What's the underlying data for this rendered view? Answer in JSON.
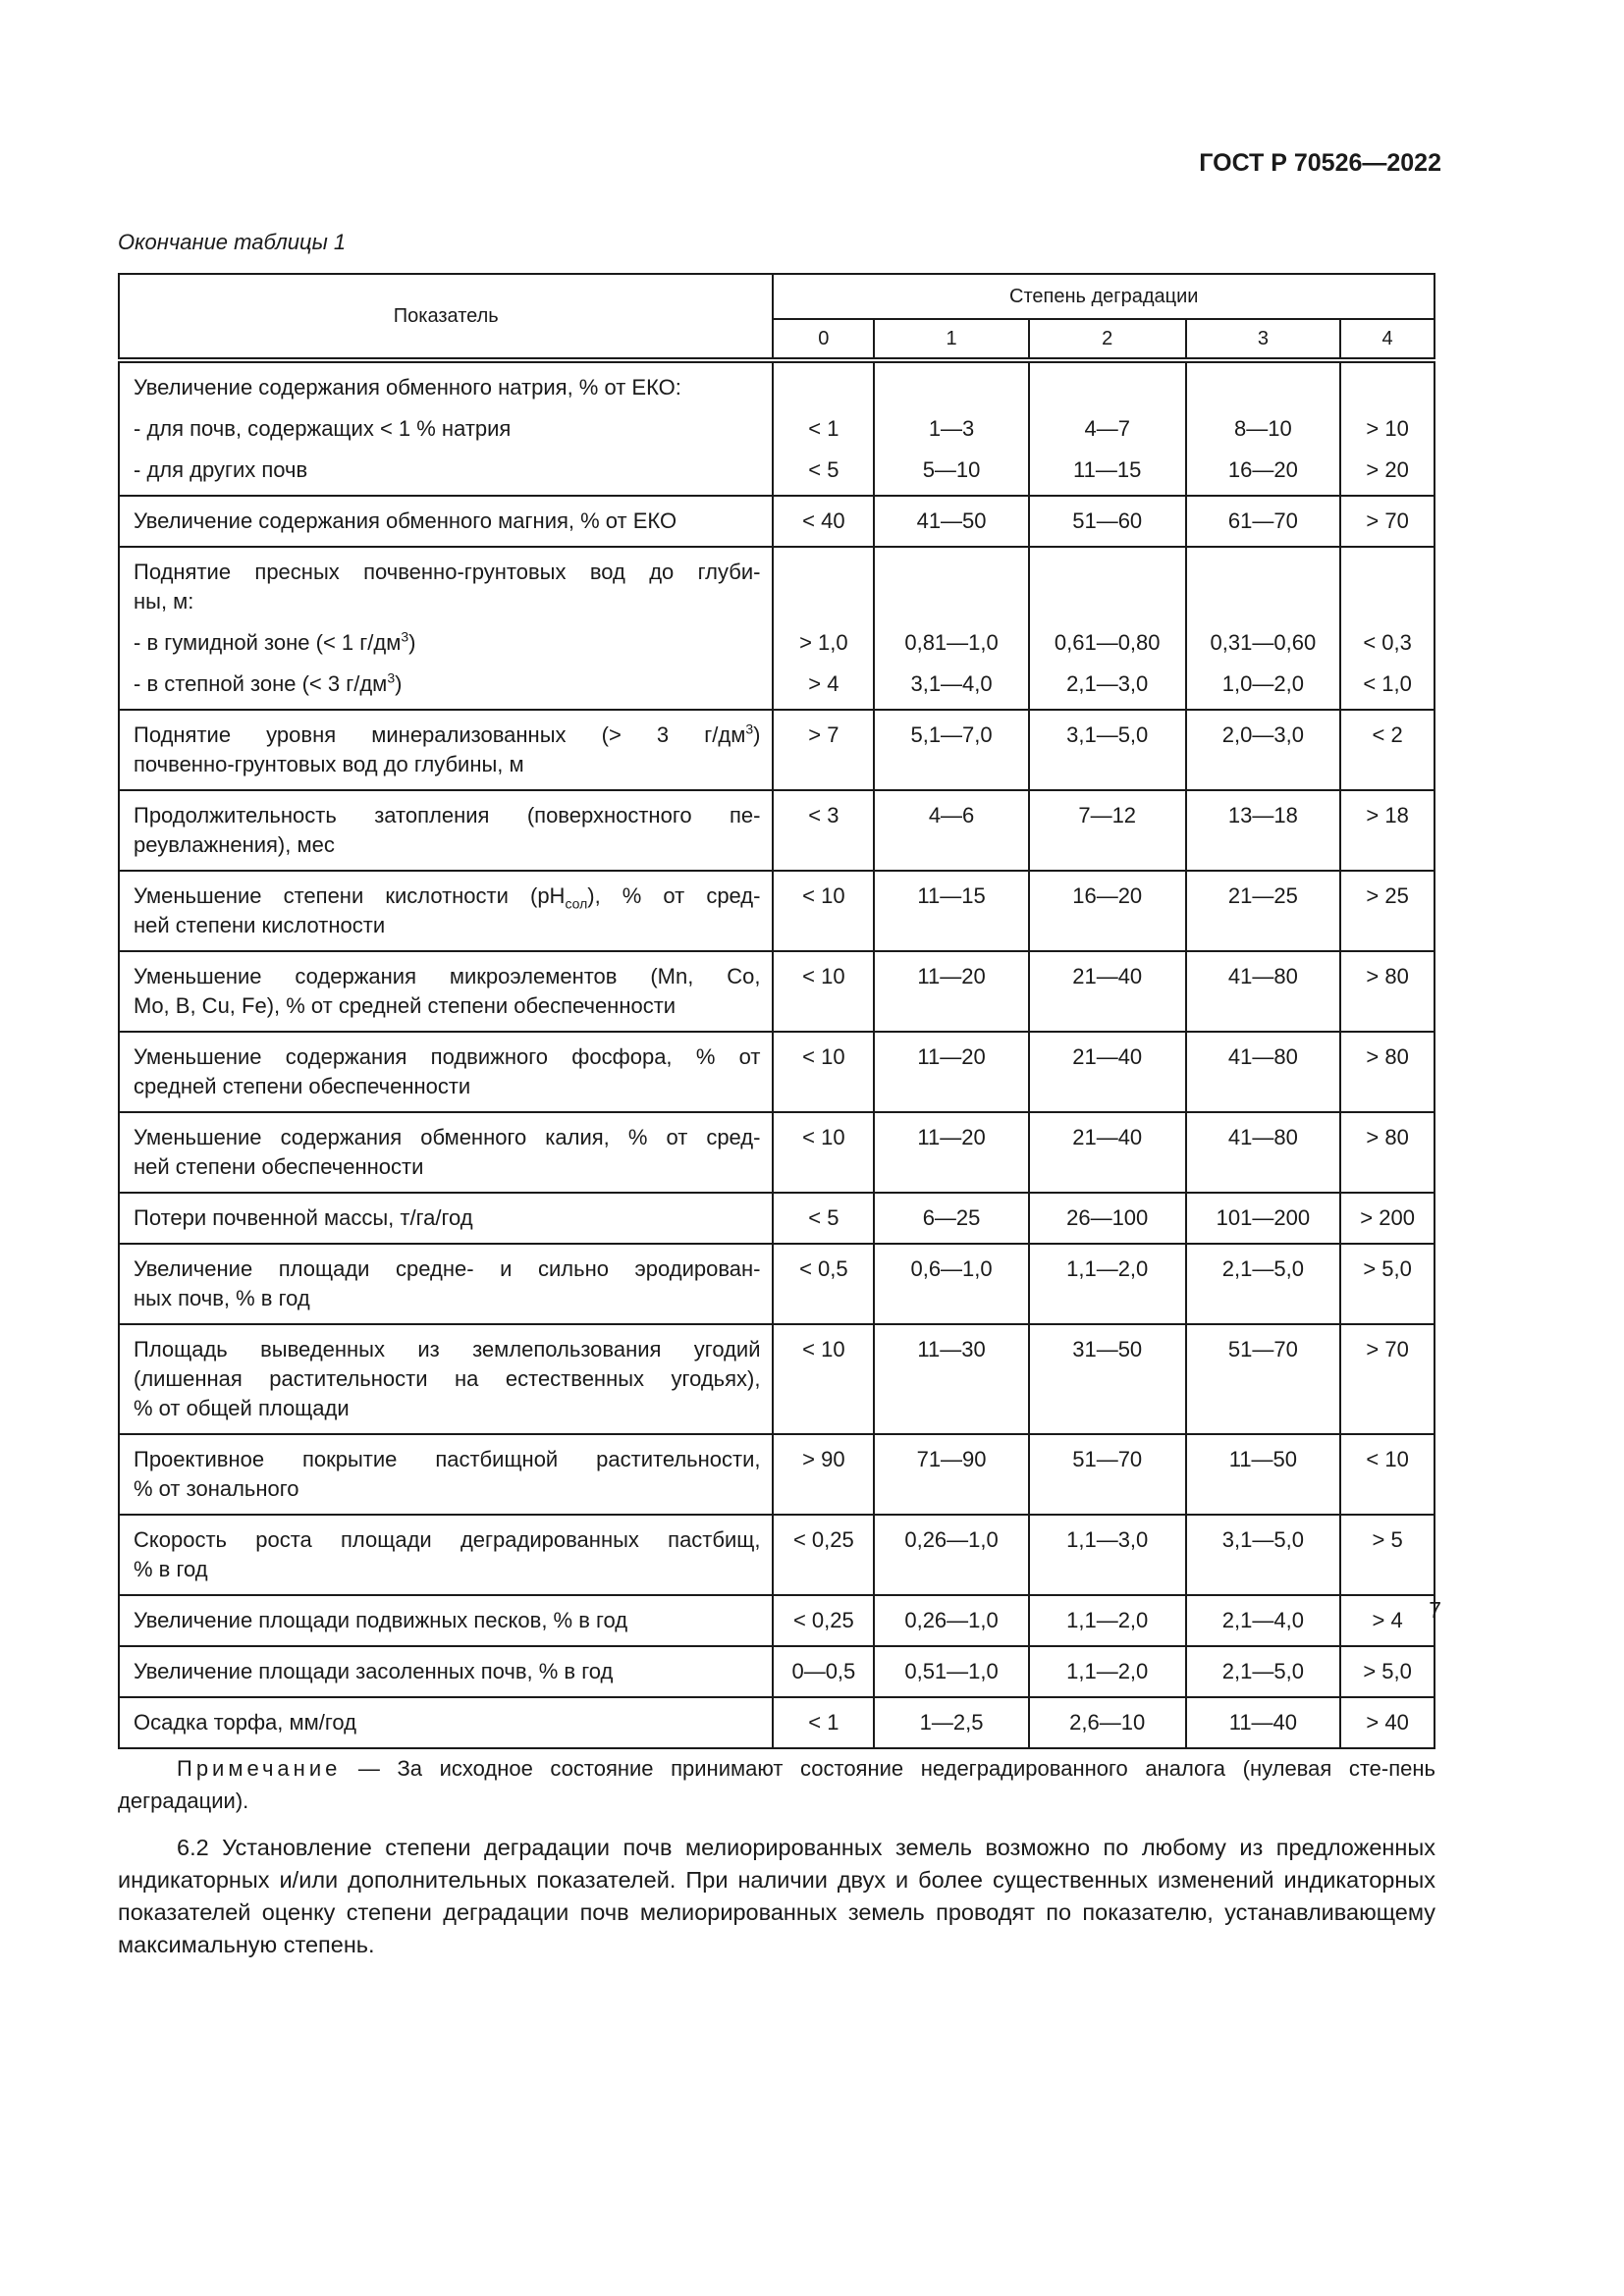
{
  "header": {
    "doc_id": "ГОСТ Р 70526—2022",
    "caption": "Окончание таблицы 1"
  },
  "table": {
    "col_indicator": "Показатель",
    "col_group": "Степень деградации",
    "degrees": [
      "0",
      "1",
      "2",
      "3",
      "4"
    ],
    "rows": [
      {
        "lines": [
          {
            "t": [
              "Увеличение содержания обменного натрия, % от ЕКО:"
            ]
          },
          {
            "t": [
              "- для почв, содержащих < 1 % натрия"
            ],
            "v": [
              "< 1",
              "1—3",
              "4—7",
              "8—10",
              "> 10"
            ],
            "gap": true
          },
          {
            "t": [
              "- для других почв"
            ],
            "v": [
              "< 5",
              "5—10",
              "11—15",
              "16—20",
              "> 20"
            ],
            "gap": true
          }
        ]
      },
      {
        "lines": [
          {
            "t": [
              "Увеличение содержания обменного магния, % от ЕКО"
            ],
            "v": [
              "< 40",
              "41—50",
              "51—60",
              "61—70",
              "> 70"
            ]
          }
        ]
      },
      {
        "lines": [
          {
            "t": [
              "Поднятие пресных почвенно-грунтовых вод до глуби-"
            ],
            "j": true
          },
          {
            "t": [
              "ны, м:"
            ]
          },
          {
            "t": [
              "- в гумидной зоне (< 1 г/дм",
              {
                "sup": "3"
              },
              ")"
            ],
            "v": [
              "> 1,0",
              "0,81—1,0",
              "0,61—0,80",
              "0,31—0,60",
              "< 0,3"
            ],
            "gap": true
          },
          {
            "t": [
              "- в степной зоне (< 3 г/дм",
              {
                "sup": "3"
              },
              ")"
            ],
            "v": [
              "> 4",
              "3,1—4,0",
              "2,1—3,0",
              "1,0—2,0",
              "< 1,0"
            ],
            "gap": true
          }
        ]
      },
      {
        "lines": [
          {
            "t": [
              "Поднятие уровня минерализованных (> 3 г/дм",
              {
                "sup": "3"
              },
              ")"
            ],
            "j": true,
            "v": [
              "> 7",
              "5,1—7,0",
              "3,1—5,0",
              "2,0—3,0",
              "< 2"
            ]
          },
          {
            "t": [
              "почвенно-грунтовых вод до глубины, м"
            ]
          }
        ]
      },
      {
        "lines": [
          {
            "t": [
              "Продолжительность затопления (поверхностного пе-"
            ],
            "j": true,
            "v": [
              "< 3",
              "4—6",
              "7—12",
              "13—18",
              "> 18"
            ]
          },
          {
            "t": [
              "реувлажнения), мес"
            ]
          }
        ]
      },
      {
        "lines": [
          {
            "t": [
              "Уменьшение степени кислотности (pH",
              {
                "sub": "сол"
              },
              "), % от сред-"
            ],
            "j": true,
            "v": [
              "< 10",
              "11—15",
              "16—20",
              "21—25",
              "> 25"
            ]
          },
          {
            "t": [
              "ней степени кислотности"
            ]
          }
        ]
      },
      {
        "lines": [
          {
            "t": [
              "Уменьшение содержания микроэлементов (Mn, Co,"
            ],
            "j": true,
            "v": [
              "< 10",
              "11—20",
              "21—40",
              "41—80",
              "> 80"
            ]
          },
          {
            "t": [
              "Mo, B, Cu, Fe), % от средней степени обеспеченности"
            ]
          }
        ]
      },
      {
        "lines": [
          {
            "t": [
              "Уменьшение содержания подвижного фосфора, % от"
            ],
            "j": true,
            "v": [
              "< 10",
              "11—20",
              "21—40",
              "41—80",
              "> 80"
            ]
          },
          {
            "t": [
              "средней степени обеспеченности"
            ]
          }
        ]
      },
      {
        "lines": [
          {
            "t": [
              "Уменьшение содержания обменного калия, % от сред-"
            ],
            "j": true,
            "v": [
              "< 10",
              "11—20",
              "21—40",
              "41—80",
              "> 80"
            ]
          },
          {
            "t": [
              "ней степени обеспеченности"
            ]
          }
        ]
      },
      {
        "lines": [
          {
            "t": [
              "Потери почвенной массы, т/га/год"
            ],
            "v": [
              "< 5",
              "6—25",
              "26—100",
              "101—200",
              "> 200"
            ]
          }
        ]
      },
      {
        "lines": [
          {
            "t": [
              "Увеличение площади средне- и сильно эродирован-"
            ],
            "j": true,
            "v": [
              "< 0,5",
              "0,6—1,0",
              "1,1—2,0",
              "2,1—5,0",
              "> 5,0"
            ]
          },
          {
            "t": [
              "ных почв, % в год"
            ]
          }
        ]
      },
      {
        "lines": [
          {
            "t": [
              "Площадь выведенных из землепользования угодий"
            ],
            "j": true,
            "v": [
              "< 10",
              "11—30",
              "31—50",
              "51—70",
              "> 70"
            ]
          },
          {
            "t": [
              "(лишенная растительности на естественных угодьях),"
            ],
            "j": true
          },
          {
            "t": [
              "% от общей площади"
            ]
          }
        ]
      },
      {
        "lines": [
          {
            "t": [
              "Проективное покрытие пастбищной растительности,"
            ],
            "j": true,
            "v": [
              "> 90",
              "71—90",
              "51—70",
              "11—50",
              "< 10"
            ]
          },
          {
            "t": [
              "% от зонального"
            ]
          }
        ]
      },
      {
        "lines": [
          {
            "t": [
              "Скорость роста площади деградированных пастбищ,"
            ],
            "j": true,
            "v": [
              "< 0,25",
              "0,26—1,0",
              "1,1—3,0",
              "3,1—5,0",
              "> 5"
            ]
          },
          {
            "t": [
              "% в год"
            ]
          }
        ]
      },
      {
        "lines": [
          {
            "t": [
              "Увеличение площади подвижных песков, % в год"
            ],
            "v": [
              "< 0,25",
              "0,26—1,0",
              "1,1—2,0",
              "2,1—4,0",
              "> 4"
            ]
          }
        ]
      },
      {
        "lines": [
          {
            "t": [
              "Увеличение площади засоленных почв, % в год"
            ],
            "v": [
              "0—0,5",
              "0,51—1,0",
              "1,1—2,0",
              "2,1—5,0",
              "> 5,0"
            ]
          }
        ]
      },
      {
        "lines": [
          {
            "t": [
              "Осадка торфа, мм/год"
            ],
            "v": [
              "< 1",
              "1—2,5",
              "2,6—10",
              "11—40",
              "> 40"
            ]
          }
        ]
      }
    ]
  },
  "note": {
    "label": "Примечание",
    "text": " — За исходное состояние принимают состояние недеградированного аналога (нулевая сте-пень деградации)."
  },
  "paragraph": "6.2 Установление степени деградации почв мелиорированных земель возможно по любому из предложенных индикаторных и/или дополнительных показателей. При наличии двух и более существенных изменений индикаторных показателей оценку степени деградации почв мелиорированных земель проводят по показателю, устанавливающему максимальную степень.",
  "page_number": "7"
}
